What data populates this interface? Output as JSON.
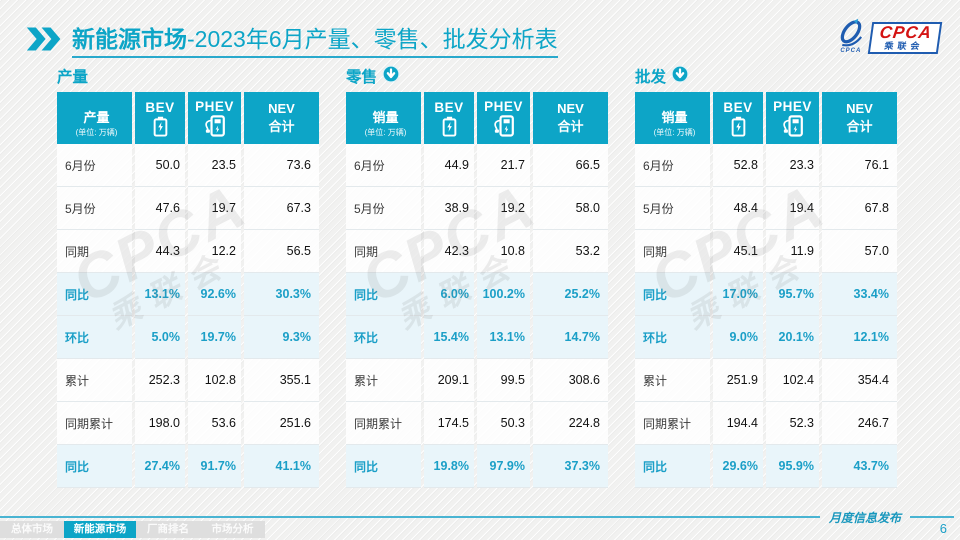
{
  "page": {
    "title_bold": "新能源市场",
    "title_rest": "-2023年6月产量、零售、批发分析表",
    "footer_note": "月度信息发布",
    "page_number": "6"
  },
  "logo": {
    "acronym": "CPCA",
    "chinese": "乘联会",
    "swirl_text": "CPCA"
  },
  "accent_color": "#0da5c7",
  "watermark": {
    "line1": "CPCA",
    "line2": "乘联会"
  },
  "tabs": [
    {
      "label": "总体市场",
      "active": false
    },
    {
      "label": "新能源市场",
      "active": true
    },
    {
      "label": "厂商排名",
      "active": false
    },
    {
      "label": "市场分析",
      "active": false
    }
  ],
  "tables": [
    {
      "key": "production",
      "section": "产量",
      "arrow": false,
      "corner": "产量",
      "unit": "(单位: 万辆)",
      "col_bev": "BEV",
      "col_phev": "PHEV",
      "col_nev1": "NEV",
      "col_nev2": "合计",
      "rows": [
        {
          "label": "6月份",
          "bev": "50.0",
          "phev": "23.5",
          "nev": "73.6",
          "pct": false
        },
        {
          "label": "5月份",
          "bev": "47.6",
          "phev": "19.7",
          "nev": "67.3",
          "pct": false
        },
        {
          "label": "同期",
          "bev": "44.3",
          "phev": "12.2",
          "nev": "56.5",
          "pct": false
        },
        {
          "label": "同比",
          "bev": "13.1%",
          "phev": "92.6%",
          "nev": "30.3%",
          "pct": true
        },
        {
          "label": "环比",
          "bev": "5.0%",
          "phev": "19.7%",
          "nev": "9.3%",
          "pct": true
        },
        {
          "label": "累计",
          "bev": "252.3",
          "phev": "102.8",
          "nev": "355.1",
          "pct": false
        },
        {
          "label": "同期累计",
          "bev": "198.0",
          "phev": "53.6",
          "nev": "251.6",
          "pct": false
        },
        {
          "label": "同比",
          "bev": "27.4%",
          "phev": "91.7%",
          "nev": "41.1%",
          "pct": true
        }
      ]
    },
    {
      "key": "retail",
      "section": "零售",
      "arrow": true,
      "corner": "销量",
      "unit": "(单位: 万辆)",
      "col_bev": "BEV",
      "col_phev": "PHEV",
      "col_nev1": "NEV",
      "col_nev2": "合计",
      "rows": [
        {
          "label": "6月份",
          "bev": "44.9",
          "phev": "21.7",
          "nev": "66.5",
          "pct": false
        },
        {
          "label": "5月份",
          "bev": "38.9",
          "phev": "19.2",
          "nev": "58.0",
          "pct": false
        },
        {
          "label": "同期",
          "bev": "42.3",
          "phev": "10.8",
          "nev": "53.2",
          "pct": false
        },
        {
          "label": "同比",
          "bev": "6.0%",
          "phev": "100.2%",
          "nev": "25.2%",
          "pct": true
        },
        {
          "label": "环比",
          "bev": "15.4%",
          "phev": "13.1%",
          "nev": "14.7%",
          "pct": true
        },
        {
          "label": "累计",
          "bev": "209.1",
          "phev": "99.5",
          "nev": "308.6",
          "pct": false
        },
        {
          "label": "同期累计",
          "bev": "174.5",
          "phev": "50.3",
          "nev": "224.8",
          "pct": false
        },
        {
          "label": "同比",
          "bev": "19.8%",
          "phev": "97.9%",
          "nev": "37.3%",
          "pct": true
        }
      ]
    },
    {
      "key": "wholesale",
      "section": "批发",
      "arrow": true,
      "corner": "销量",
      "unit": "(单位: 万辆)",
      "col_bev": "BEV",
      "col_phev": "PHEV",
      "col_nev1": "NEV",
      "col_nev2": "合计",
      "rows": [
        {
          "label": "6月份",
          "bev": "52.8",
          "phev": "23.3",
          "nev": "76.1",
          "pct": false
        },
        {
          "label": "5月份",
          "bev": "48.4",
          "phev": "19.4",
          "nev": "67.8",
          "pct": false
        },
        {
          "label": "同期",
          "bev": "45.1",
          "phev": "11.9",
          "nev": "57.0",
          "pct": false
        },
        {
          "label": "同比",
          "bev": "17.0%",
          "phev": "95.7%",
          "nev": "33.4%",
          "pct": true
        },
        {
          "label": "环比",
          "bev": "9.0%",
          "phev": "20.1%",
          "nev": "12.1%",
          "pct": true
        },
        {
          "label": "累计",
          "bev": "251.9",
          "phev": "102.4",
          "nev": "354.4",
          "pct": false
        },
        {
          "label": "同期累计",
          "bev": "194.4",
          "phev": "52.3",
          "nev": "246.7",
          "pct": false
        },
        {
          "label": "同比",
          "bev": "29.6%",
          "phev": "95.9%",
          "nev": "43.7%",
          "pct": true
        }
      ]
    }
  ]
}
